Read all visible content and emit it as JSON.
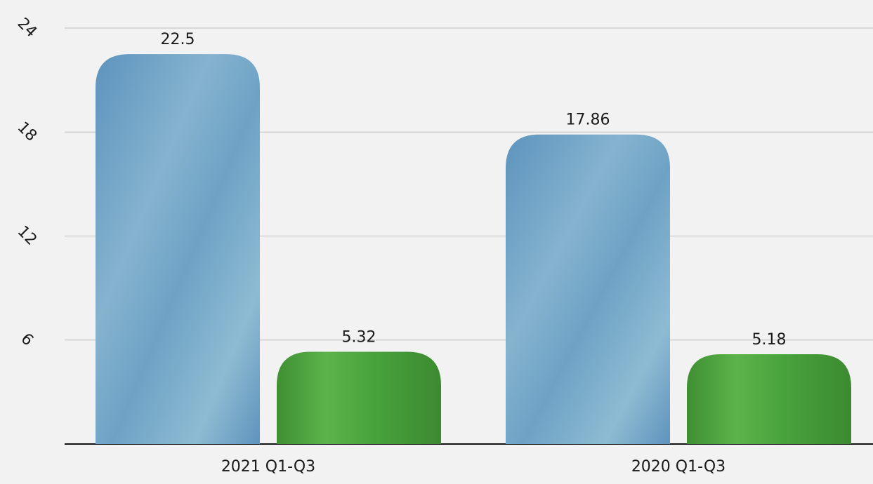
{
  "chart_data": {
    "type": "bar",
    "categories": [
      "2021 Q1-Q3",
      "2020 Q1-Q3"
    ],
    "series": [
      {
        "values": [
          22.5,
          17.86
        ],
        "color": "#6b9ec3"
      },
      {
        "values": [
          5.32,
          5.18
        ],
        "color": "#4ea53e"
      }
    ],
    "data_labels": [
      [
        "22.5",
        "17.86"
      ],
      [
        "5.32",
        "5.18"
      ]
    ],
    "yticks": [
      0,
      6,
      12,
      18,
      24
    ],
    "ytick_labels": [
      "6",
      "12",
      "18",
      "24"
    ],
    "ylim": [
      0,
      24
    ],
    "grid": true,
    "legend": "none",
    "background": "#f2f2f2",
    "gridline_color": "#bdbdbd",
    "axis_color": "#111111"
  }
}
